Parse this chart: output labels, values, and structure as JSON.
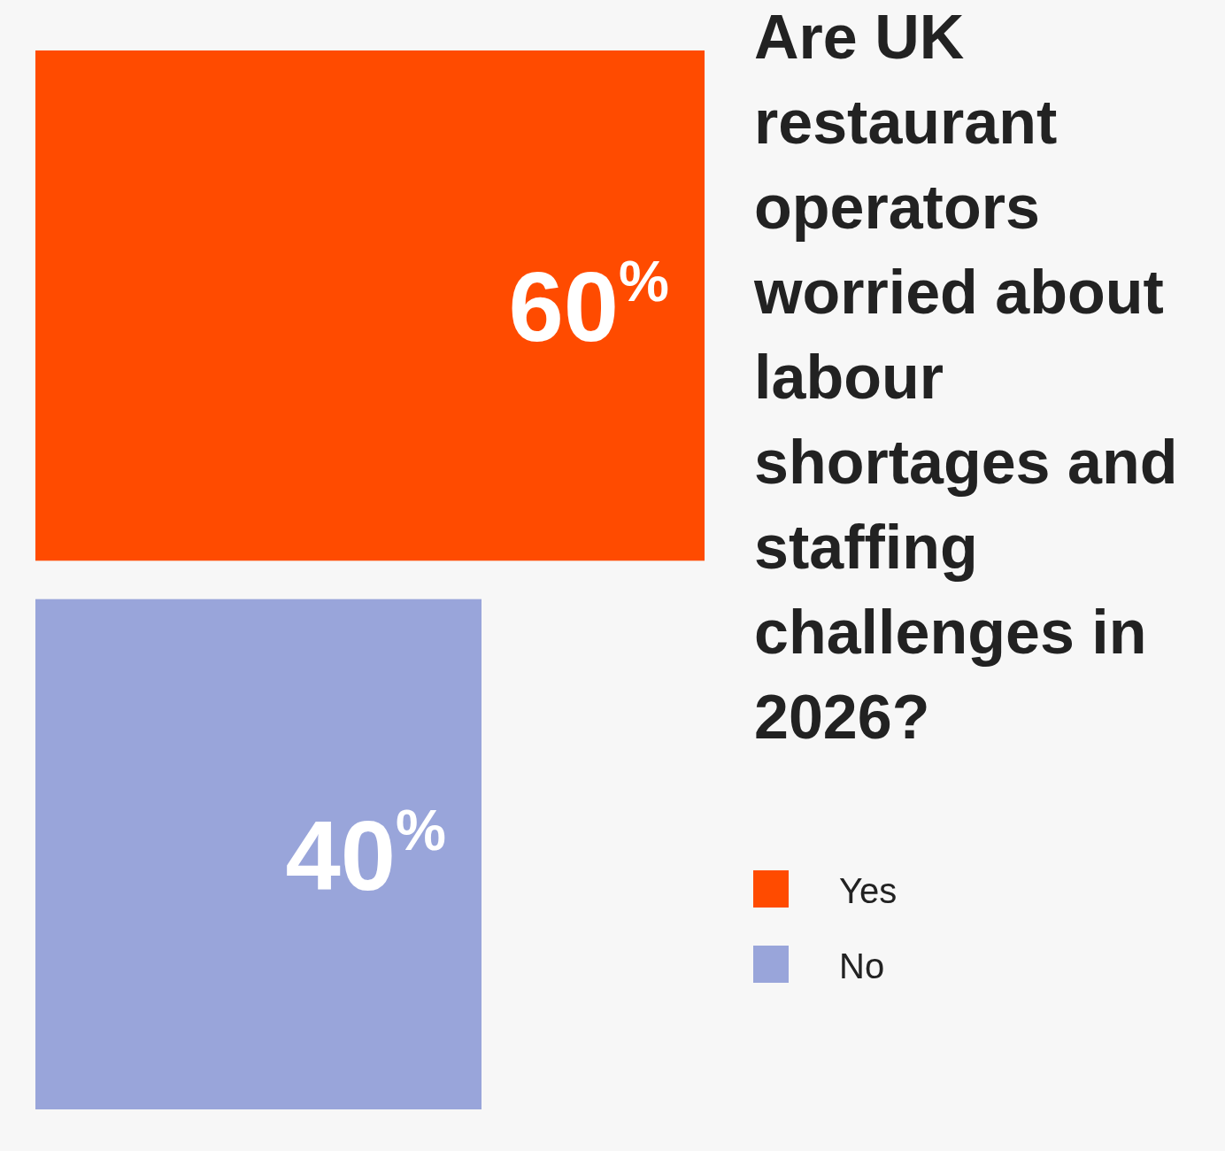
{
  "chart_data": {
    "type": "bar",
    "orientation": "horizontal",
    "title": "Are UK restaurant operators worried about labour shortages and staffing challenges in 2026?",
    "categories": [
      null
    ],
    "series": [
      {
        "name": "Yes",
        "color": "#ff4b00",
        "values": [
          60
        ],
        "value_labels": [
          "60$^{%}$"
        ]
      },
      {
        "name": "No",
        "color": "#99a5da",
        "values": [
          40
        ],
        "value_labels": [
          "40$^{%}$"
        ]
      }
    ],
    "legend": "bottom right"
  }
}
